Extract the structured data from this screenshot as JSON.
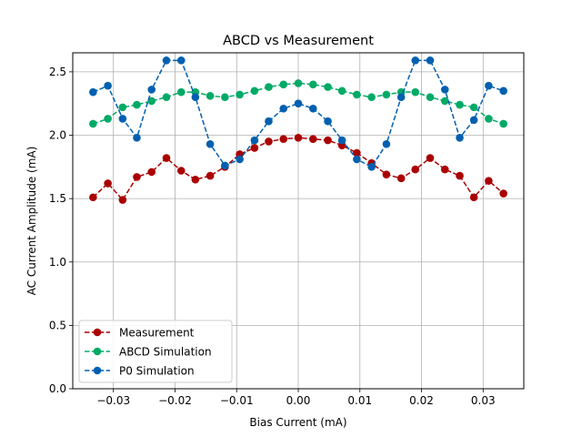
{
  "chart_data": {
    "type": "line",
    "title": "ABCD vs Measurement",
    "xlabel": "Bias Current (mA)",
    "ylabel": "AC Current Amplitude (mA)",
    "xlim": [
      -0.0366,
      0.0366
    ],
    "ylim": [
      0.0,
      2.65
    ],
    "grid": true,
    "legend_position": "lower-left",
    "x_ticks": [
      -0.03,
      -0.02,
      -0.01,
      0.0,
      0.01,
      0.02,
      0.03
    ],
    "x_tick_labels": [
      "−0.03",
      "−0.02",
      "−0.01",
      "0.00",
      "0.01",
      "0.02",
      "0.03"
    ],
    "y_ticks": [
      0.0,
      0.5,
      1.0,
      1.5,
      2.0,
      2.5
    ],
    "y_tick_labels": [
      "0.0",
      "0.5",
      "1.0",
      "1.5",
      "2.0",
      "2.5"
    ],
    "x": [
      -0.0333,
      -0.0309,
      -0.0285,
      -0.0262,
      -0.0238,
      -0.0214,
      -0.019,
      -0.0167,
      -0.0143,
      -0.0119,
      -0.0095,
      -0.0071,
      -0.0048,
      -0.0024,
      0.0,
      0.0024,
      0.0048,
      0.0071,
      0.0095,
      0.0119,
      0.0143,
      0.0167,
      0.019,
      0.0214,
      0.0238,
      0.0262,
      0.0285,
      0.0309,
      0.0333
    ],
    "series": [
      {
        "name": "Measurement",
        "color": "#aa0000",
        "values": [
          1.51,
          1.62,
          1.49,
          1.67,
          1.71,
          1.82,
          1.72,
          1.65,
          1.68,
          1.75,
          1.85,
          1.9,
          1.95,
          1.97,
          1.98,
          1.97,
          1.96,
          1.92,
          1.86,
          1.78,
          1.69,
          1.66,
          1.73,
          1.82,
          1.73,
          1.68,
          1.51,
          1.64,
          1.54
        ]
      },
      {
        "name": "ABCD Simulation",
        "color": "#00aa66",
        "values": [
          2.09,
          2.13,
          2.22,
          2.24,
          2.27,
          2.3,
          2.34,
          2.34,
          2.31,
          2.3,
          2.32,
          2.35,
          2.38,
          2.4,
          2.41,
          2.4,
          2.38,
          2.35,
          2.32,
          2.3,
          2.32,
          2.34,
          2.34,
          2.3,
          2.27,
          2.24,
          2.22,
          2.13,
          2.09
        ]
      },
      {
        "name": "P0 Simulation",
        "color": "#0060b0",
        "values": [
          2.34,
          2.39,
          2.13,
          1.98,
          2.36,
          2.59,
          2.59,
          2.3,
          1.93,
          1.76,
          1.81,
          1.96,
          2.11,
          2.21,
          2.25,
          2.21,
          2.11,
          1.96,
          1.81,
          1.75,
          1.93,
          2.3,
          2.59,
          2.59,
          2.36,
          1.98,
          2.12,
          2.39,
          2.35
        ]
      }
    ]
  }
}
